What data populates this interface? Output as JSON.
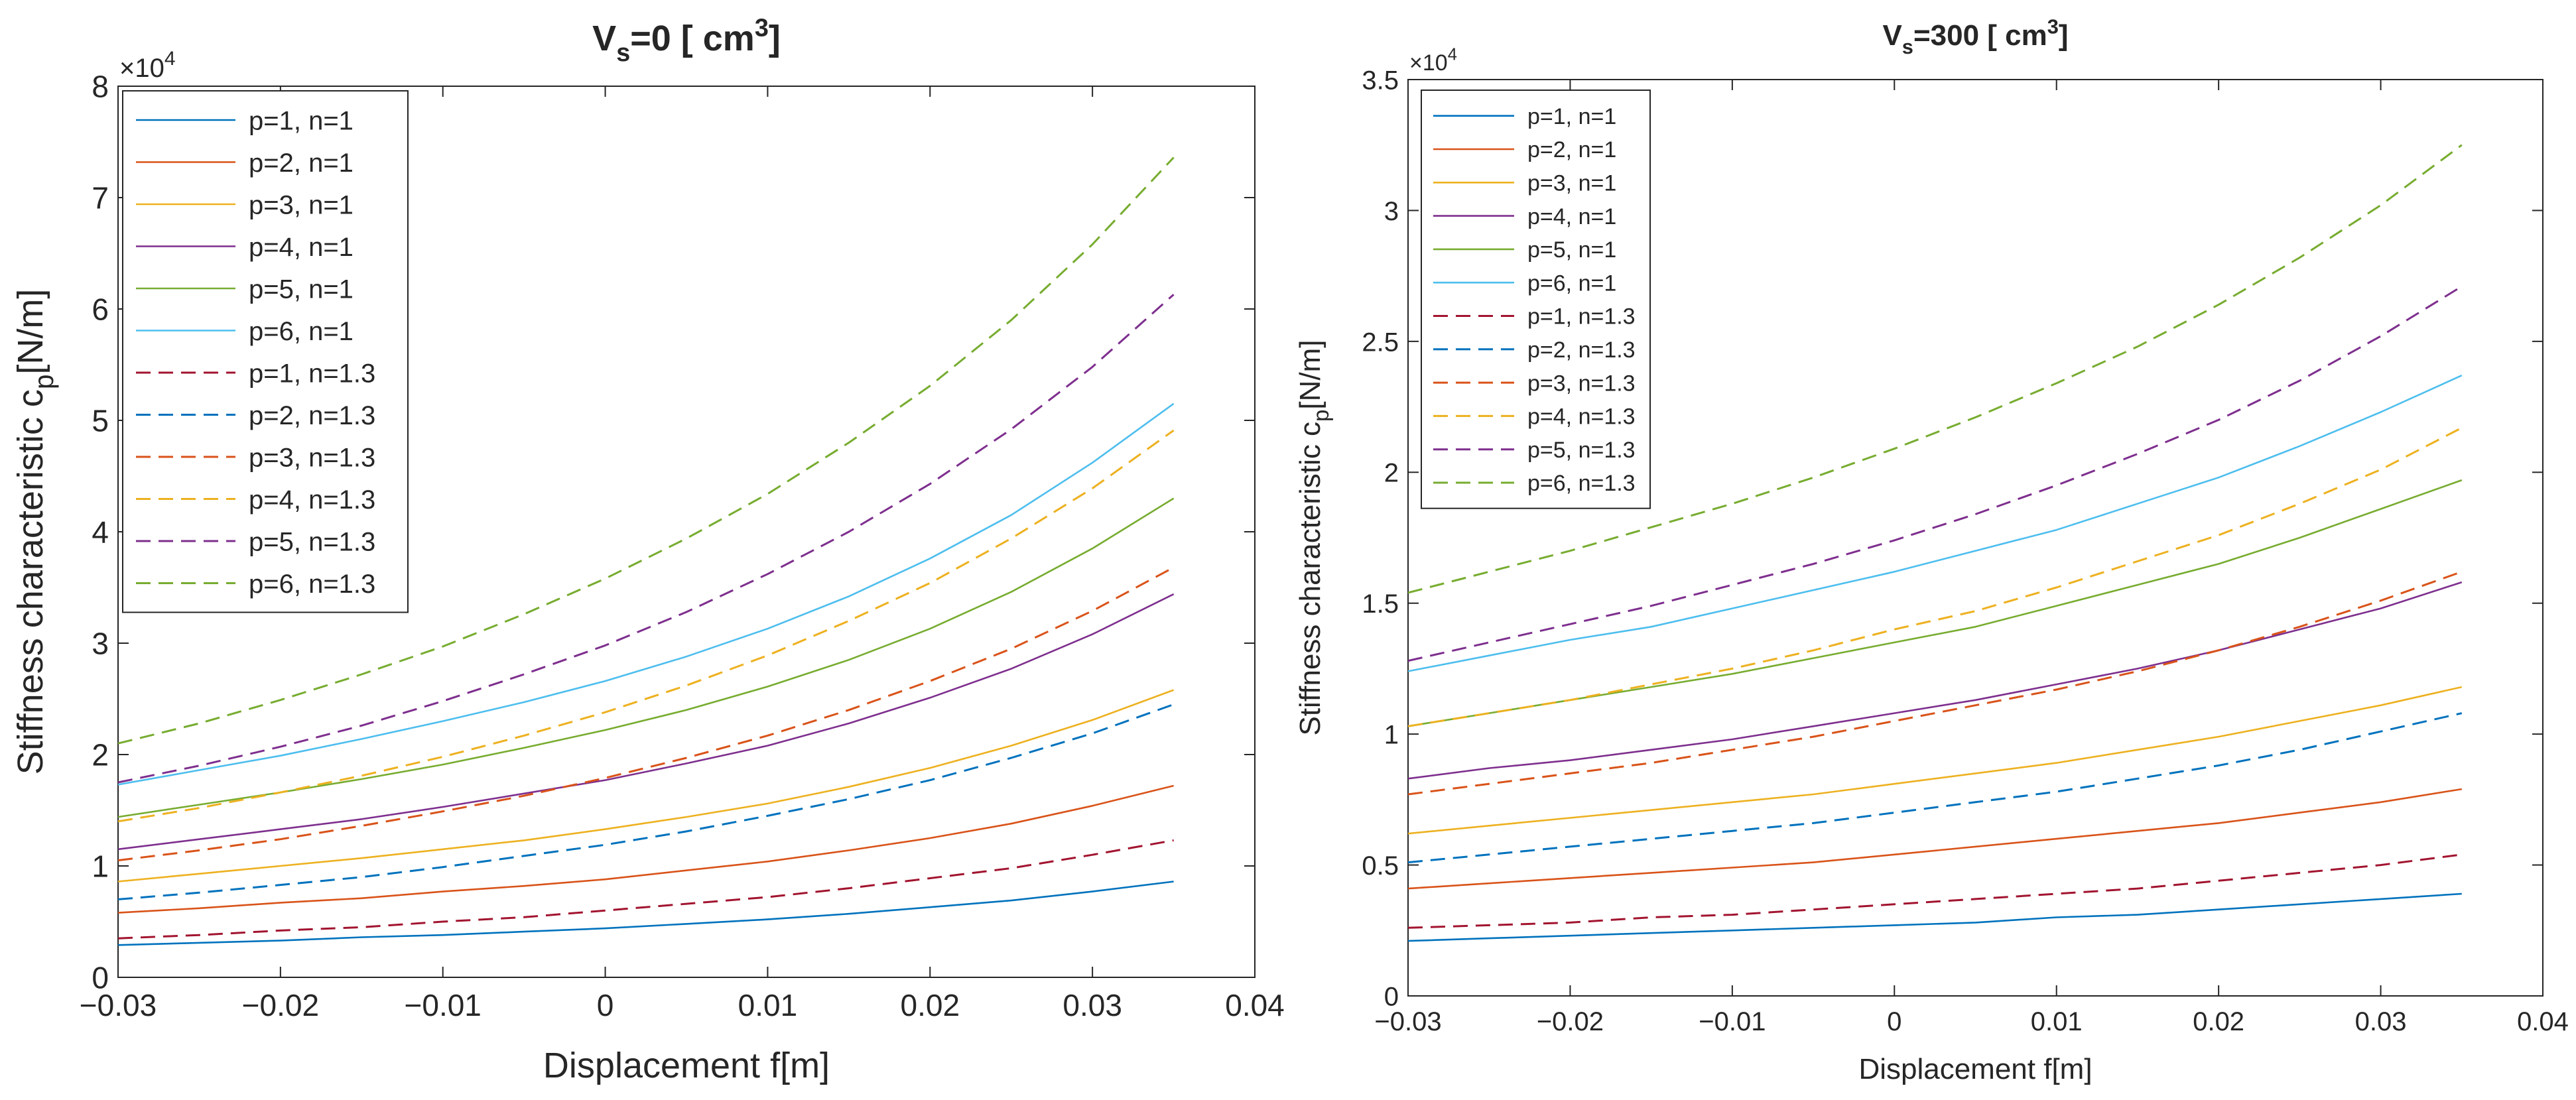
{
  "chart_data": [
    {
      "type": "line",
      "title": "V_s=0 [cm^3]",
      "title_parts": {
        "main": "V",
        "sub": "s",
        "mid": "=0 [ cm",
        "sup": "3",
        "end": "]"
      },
      "xlabel": "Displacement f[m]",
      "ylabel_parts": {
        "main": "Stiffness characteristic c",
        "sub": "p",
        "end": "[N/m]"
      },
      "y_exponent": {
        "base": "×10",
        "exp": "4"
      },
      "xlim": [
        -0.03,
        0.04
      ],
      "ylim": [
        0,
        8
      ],
      "xticks": [
        "−0.03",
        "−0.02",
        "−0.01",
        "0",
        "0.01",
        "0.02",
        "0.03",
        "0.04"
      ],
      "yticks": [
        "0",
        "1",
        "2",
        "3",
        "4",
        "5",
        "6",
        "7",
        "8"
      ],
      "y_scale": 10000,
      "grid": false,
      "legend_position": "top-left",
      "x": [
        -0.03,
        -0.025,
        -0.02,
        -0.015,
        -0.01,
        -0.005,
        0,
        0.005,
        0.01,
        0.015,
        0.02,
        0.025,
        0.03,
        0.035
      ],
      "series": [
        {
          "name": "p=1, n=1",
          "color": "#0072BD",
          "dash": false,
          "values": [
            0.29,
            0.31,
            0.33,
            0.36,
            0.38,
            0.41,
            0.44,
            0.48,
            0.52,
            0.57,
            0.63,
            0.69,
            0.77,
            0.86
          ]
        },
        {
          "name": "p=2, n=1",
          "color": "#D95319",
          "dash": false,
          "values": [
            0.58,
            0.62,
            0.67,
            0.71,
            0.77,
            0.82,
            0.88,
            0.96,
            1.04,
            1.14,
            1.25,
            1.38,
            1.54,
            1.72
          ]
        },
        {
          "name": "p=3, n=1",
          "color": "#EDB120",
          "dash": false,
          "values": [
            0.86,
            0.93,
            1.0,
            1.07,
            1.15,
            1.23,
            1.33,
            1.44,
            1.56,
            1.71,
            1.88,
            2.08,
            2.31,
            2.58
          ]
        },
        {
          "name": "p=4, n=1",
          "color": "#7E2F8E",
          "dash": false,
          "values": [
            1.15,
            1.24,
            1.33,
            1.42,
            1.53,
            1.65,
            1.77,
            1.92,
            2.08,
            2.28,
            2.51,
            2.77,
            3.08,
            3.44
          ]
        },
        {
          "name": "p=5, n=1",
          "color": "#77AC30",
          "dash": false,
          "values": [
            1.44,
            1.55,
            1.66,
            1.78,
            1.91,
            2.06,
            2.22,
            2.4,
            2.61,
            2.85,
            3.13,
            3.46,
            3.85,
            4.3
          ]
        },
        {
          "name": "p=6, n=1",
          "color": "#4DBEEE",
          "dash": false,
          "values": [
            1.73,
            1.86,
            1.99,
            2.14,
            2.3,
            2.47,
            2.66,
            2.88,
            3.13,
            3.42,
            3.76,
            4.15,
            4.62,
            5.15
          ]
        },
        {
          "name": "p=1, n=1.3",
          "color": "#A2142F",
          "dash": true,
          "values": [
            0.35,
            0.38,
            0.42,
            0.45,
            0.5,
            0.54,
            0.6,
            0.66,
            0.72,
            0.8,
            0.89,
            0.98,
            1.1,
            1.23
          ]
        },
        {
          "name": "p=2, n=1.3",
          "color": "#0072BD",
          "dash": true,
          "values": [
            0.7,
            0.76,
            0.83,
            0.9,
            0.99,
            1.09,
            1.19,
            1.31,
            1.45,
            1.6,
            1.77,
            1.97,
            2.19,
            2.45
          ]
        },
        {
          "name": "p=3, n=1.3",
          "color": "#D95319",
          "dash": true,
          "values": [
            1.05,
            1.14,
            1.24,
            1.36,
            1.49,
            1.63,
            1.79,
            1.97,
            2.17,
            2.4,
            2.66,
            2.95,
            3.29,
            3.68
          ]
        },
        {
          "name": "p=4, n=1.3",
          "color": "#EDB120",
          "dash": true,
          "values": [
            1.4,
            1.52,
            1.66,
            1.81,
            1.98,
            2.17,
            2.38,
            2.62,
            2.89,
            3.2,
            3.54,
            3.94,
            4.39,
            4.91
          ]
        },
        {
          "name": "p=5, n=1.3",
          "color": "#7E2F8E",
          "dash": true,
          "values": [
            1.75,
            1.9,
            2.07,
            2.26,
            2.48,
            2.72,
            2.98,
            3.28,
            3.62,
            4.0,
            4.43,
            4.92,
            5.48,
            6.13
          ]
        },
        {
          "name": "p=6, n=1.3",
          "color": "#77AC30",
          "dash": true,
          "values": [
            2.1,
            2.28,
            2.49,
            2.72,
            2.97,
            3.26,
            3.58,
            3.94,
            4.34,
            4.8,
            5.31,
            5.9,
            6.58,
            7.36
          ]
        }
      ]
    },
    {
      "type": "line",
      "title": "V_s=300 [cm^3]",
      "title_parts": {
        "main": "V",
        "sub": "s",
        "mid": "=300 [ cm",
        "sup": "3",
        "end": "]"
      },
      "xlabel": "Displacement f[m]",
      "ylabel_parts": {
        "main": "Stiffness characteristic c",
        "sub": "p",
        "end": "[N/m]"
      },
      "y_exponent": {
        "base": "×10",
        "exp": "4"
      },
      "xlim": [
        -0.03,
        0.04
      ],
      "ylim": [
        0,
        3.5
      ],
      "xticks": [
        "−0.03",
        "−0.02",
        "−0.01",
        "0",
        "0.01",
        "0.02",
        "0.03",
        "0.04"
      ],
      "yticks": [
        "0",
        "0.5",
        "1",
        "1.5",
        "2",
        "2.5",
        "3",
        "3.5"
      ],
      "y_scale": 10000,
      "grid": false,
      "legend_position": "top-left",
      "x": [
        -0.03,
        -0.025,
        -0.02,
        -0.015,
        -0.01,
        -0.005,
        0,
        0.005,
        0.01,
        0.015,
        0.02,
        0.025,
        0.03,
        0.035
      ],
      "series": [
        {
          "name": "p=1, n=1",
          "color": "#0072BD",
          "dash": false,
          "values": [
            0.21,
            0.22,
            0.23,
            0.24,
            0.25,
            0.26,
            0.27,
            0.28,
            0.3,
            0.31,
            0.33,
            0.35,
            0.37,
            0.39
          ]
        },
        {
          "name": "p=2, n=1",
          "color": "#D95319",
          "dash": false,
          "values": [
            0.41,
            0.43,
            0.45,
            0.47,
            0.49,
            0.51,
            0.54,
            0.57,
            0.6,
            0.63,
            0.66,
            0.7,
            0.74,
            0.79
          ]
        },
        {
          "name": "p=3, n=1",
          "color": "#EDB120",
          "dash": false,
          "values": [
            0.62,
            0.65,
            0.68,
            0.71,
            0.74,
            0.77,
            0.81,
            0.85,
            0.89,
            0.94,
            0.99,
            1.05,
            1.11,
            1.18
          ]
        },
        {
          "name": "p=4, n=1",
          "color": "#7E2F8E",
          "dash": false,
          "values": [
            0.83,
            0.87,
            0.9,
            0.94,
            0.98,
            1.03,
            1.08,
            1.13,
            1.19,
            1.25,
            1.32,
            1.4,
            1.48,
            1.58
          ]
        },
        {
          "name": "p=5, n=1",
          "color": "#77AC30",
          "dash": false,
          "values": [
            1.03,
            1.08,
            1.13,
            1.18,
            1.23,
            1.29,
            1.35,
            1.41,
            1.49,
            1.57,
            1.65,
            1.75,
            1.86,
            1.97
          ]
        },
        {
          "name": "p=6, n=1",
          "color": "#4DBEEE",
          "dash": false,
          "values": [
            1.24,
            1.3,
            1.36,
            1.41,
            1.48,
            1.55,
            1.62,
            1.7,
            1.78,
            1.88,
            1.98,
            2.1,
            2.23,
            2.37
          ]
        },
        {
          "name": "p=1, n=1.3",
          "color": "#A2142F",
          "dash": true,
          "values": [
            0.26,
            0.27,
            0.28,
            0.3,
            0.31,
            0.33,
            0.35,
            0.37,
            0.39,
            0.41,
            0.44,
            0.47,
            0.5,
            0.54
          ]
        },
        {
          "name": "p=2, n=1.3",
          "color": "#0072BD",
          "dash": true,
          "values": [
            0.51,
            0.54,
            0.57,
            0.6,
            0.63,
            0.66,
            0.7,
            0.74,
            0.78,
            0.83,
            0.88,
            0.94,
            1.01,
            1.08
          ]
        },
        {
          "name": "p=3, n=1.3",
          "color": "#D95319",
          "dash": true,
          "values": [
            0.77,
            0.81,
            0.85,
            0.89,
            0.94,
            0.99,
            1.05,
            1.11,
            1.17,
            1.24,
            1.32,
            1.41,
            1.51,
            1.62
          ]
        },
        {
          "name": "p=4, n=1.3",
          "color": "#EDB120",
          "dash": true,
          "values": [
            1.03,
            1.08,
            1.13,
            1.19,
            1.25,
            1.32,
            1.4,
            1.47,
            1.56,
            1.66,
            1.76,
            1.88,
            2.01,
            2.17
          ]
        },
        {
          "name": "p=5, n=1.3",
          "color": "#7E2F8E",
          "dash": true,
          "values": [
            1.28,
            1.35,
            1.42,
            1.49,
            1.57,
            1.65,
            1.74,
            1.84,
            1.95,
            2.07,
            2.2,
            2.35,
            2.52,
            2.71
          ]
        },
        {
          "name": "p=6, n=1.3",
          "color": "#77AC30",
          "dash": true,
          "values": [
            1.54,
            1.62,
            1.7,
            1.79,
            1.88,
            1.98,
            2.09,
            2.21,
            2.34,
            2.48,
            2.64,
            2.82,
            3.02,
            3.25
          ]
        }
      ]
    }
  ]
}
